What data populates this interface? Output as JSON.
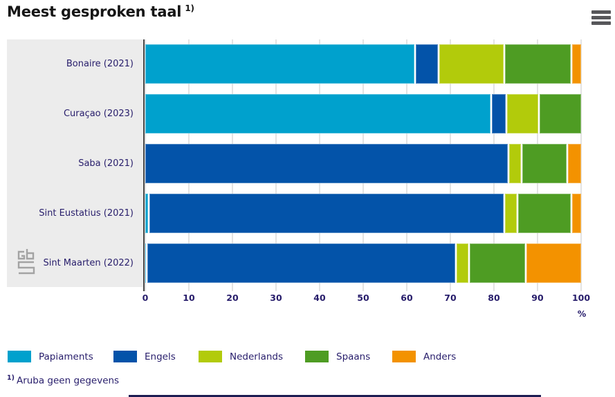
{
  "header": {
    "title": "Meest gesproken taal",
    "title_footnote_marker": "1)"
  },
  "chart_data": {
    "type": "bar",
    "orientation": "horizontal",
    "stacked": true,
    "title": "Meest gesproken taal 1)",
    "unit": "%",
    "xlabel": "%",
    "xlim": [
      0,
      100
    ],
    "x_ticks": [
      0,
      10,
      20,
      30,
      40,
      50,
      60,
      70,
      80,
      90,
      100
    ],
    "grid": true,
    "legend_position": "bottom",
    "categories": [
      "Bonaire (2021)",
      "Curaçao (2023)",
      "Saba (2021)",
      "Sint Eustatius (2021)",
      "Sint Maarten (2022)"
    ],
    "series": [
      {
        "name": "Papiaments",
        "color": "#00a1cd",
        "values": [
          62,
          79.5,
          0,
          1,
          0.5
        ]
      },
      {
        "name": "Engels",
        "color": "#0353a9",
        "values": [
          5.5,
          3.5,
          83.5,
          81.5,
          71
        ]
      },
      {
        "name": "Nederlands",
        "color": "#b2cb0b",
        "values": [
          15,
          7.5,
          3,
          3,
          3
        ]
      },
      {
        "name": "Spaans",
        "color": "#4e9c23",
        "values": [
          15.5,
          9.5,
          10.5,
          12.5,
          13
        ]
      },
      {
        "name": "Anders",
        "color": "#f39200",
        "values": [
          2,
          0,
          3,
          2,
          12.5
        ]
      }
    ]
  },
  "footnote": {
    "marker": "1)",
    "text": "Aruba geen gegevens"
  },
  "icons": {
    "menu": "hamburger-icon",
    "logo": "cbs-logo"
  },
  "colors": {
    "text_navy": "#271d6b",
    "panel_gray": "#ececec",
    "axis": "#4a4a4a",
    "gridline": "#e3e3e3"
  }
}
